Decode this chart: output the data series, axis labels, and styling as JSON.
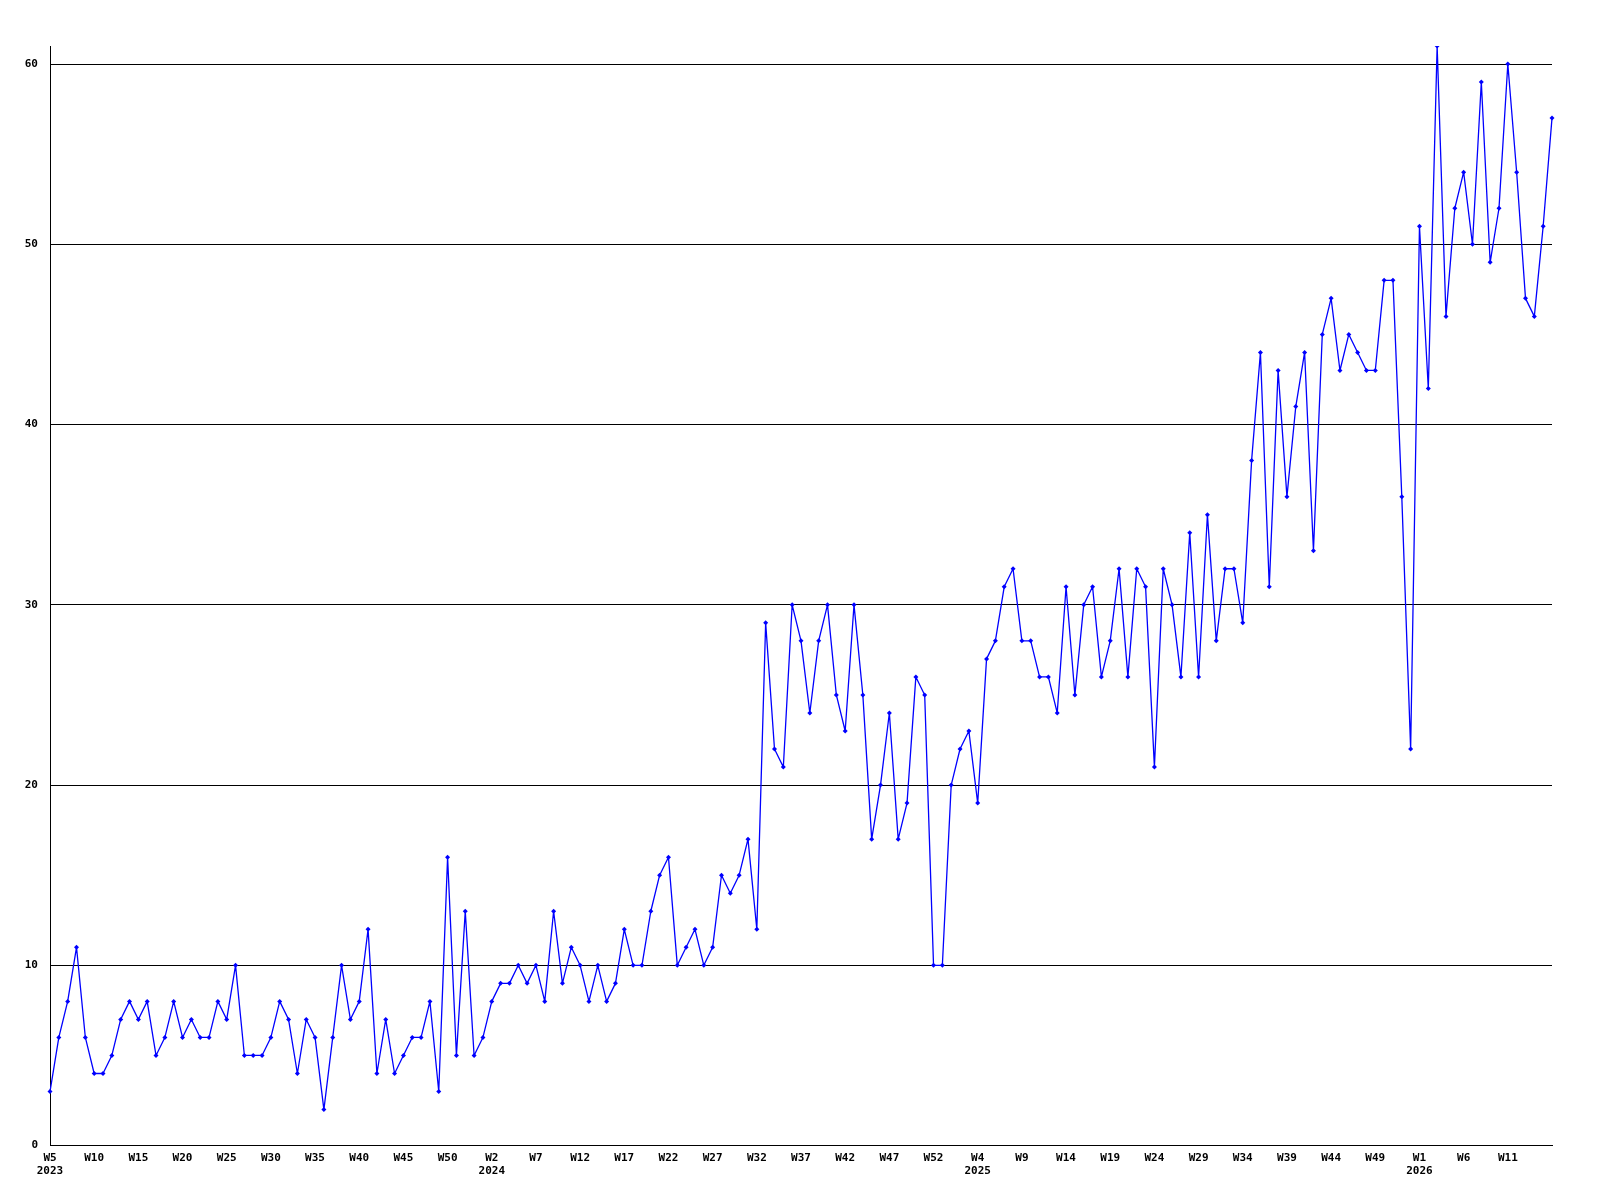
{
  "chart_data": {
    "type": "line",
    "categories": [
      "W5\n2023",
      null,
      null,
      null,
      null,
      "W10",
      null,
      null,
      null,
      null,
      "W15",
      null,
      null,
      null,
      null,
      "W20",
      null,
      null,
      null,
      null,
      "W25",
      null,
      null,
      null,
      null,
      "W30",
      null,
      null,
      null,
      null,
      "W35",
      null,
      null,
      null,
      null,
      "W40",
      null,
      null,
      null,
      null,
      "W45",
      null,
      null,
      null,
      null,
      "W50",
      null,
      null,
      null,
      null,
      "W2\n2024",
      null,
      null,
      null,
      null,
      "W7",
      null,
      null,
      null,
      null,
      "W12",
      null,
      null,
      null,
      null,
      "W17",
      null,
      null,
      null,
      null,
      "W22",
      null,
      null,
      null,
      null,
      "W27",
      null,
      null,
      null,
      null,
      "W32",
      null,
      null,
      null,
      null,
      "W37",
      null,
      null,
      null,
      null,
      "W42",
      null,
      null,
      null,
      null,
      "W47",
      null,
      null,
      null,
      null,
      "W52",
      null,
      null,
      null,
      null,
      "W4\n2025",
      null,
      null,
      null,
      null,
      "W9",
      null,
      null,
      null,
      null,
      "W14",
      null,
      null,
      null,
      null,
      "W19",
      null,
      null,
      null,
      null,
      "W24",
      null,
      null,
      null,
      null,
      "W29",
      null,
      null,
      null,
      null,
      "W34",
      null,
      null,
      null,
      null,
      "W39",
      null,
      null,
      null,
      null,
      "W44",
      null,
      null,
      null,
      null,
      "W49",
      null,
      null,
      null,
      null,
      "W1\n2026",
      null,
      null,
      null,
      null,
      "W6",
      null,
      null,
      null,
      null,
      "W11",
      null,
      null,
      null,
      null,
      null
    ],
    "series": [
      {
        "color": "#0000ff",
        "values": [
          3,
          6,
          8,
          11,
          6,
          4,
          4,
          5,
          7,
          8,
          7,
          8,
          5,
          6,
          8,
          6,
          7,
          6,
          6,
          8,
          7,
          10,
          5,
          5,
          5,
          6,
          8,
          7,
          4,
          7,
          6,
          2,
          6,
          10,
          7,
          8,
          12,
          4,
          7,
          4,
          5,
          6,
          6,
          8,
          3,
          16,
          5,
          13,
          5,
          6,
          8,
          9,
          9,
          10,
          9,
          10,
          8,
          13,
          9,
          11,
          10,
          8,
          10,
          8,
          9,
          12,
          10,
          10,
          13,
          15,
          16,
          10,
          11,
          12,
          10,
          11,
          15,
          14,
          15,
          17,
          12,
          29,
          22,
          21,
          30,
          28,
          24,
          28,
          30,
          25,
          23,
          30,
          25,
          17,
          20,
          24,
          17,
          19,
          26,
          25,
          10,
          10,
          20,
          22,
          23,
          19,
          27,
          28,
          31,
          32,
          28,
          28,
          26,
          26,
          24,
          31,
          25,
          30,
          31,
          26,
          28,
          32,
          26,
          32,
          31,
          21,
          32,
          30,
          26,
          34,
          26,
          35,
          28,
          32,
          32,
          29,
          38,
          44,
          31,
          43,
          36,
          41,
          44,
          33,
          45,
          47,
          43,
          45,
          44,
          43,
          43,
          48,
          48,
          36,
          22,
          51,
          42,
          61,
          46,
          52,
          54,
          50,
          59,
          49,
          52,
          60,
          54,
          47,
          46,
          51,
          57
        ]
      }
    ],
    "ylim": [
      0,
      61
    ],
    "yticks": [
      0,
      10,
      20,
      30,
      40,
      50,
      60
    ],
    "grid": "y",
    "marker": "diamond",
    "line_style": "solid"
  }
}
